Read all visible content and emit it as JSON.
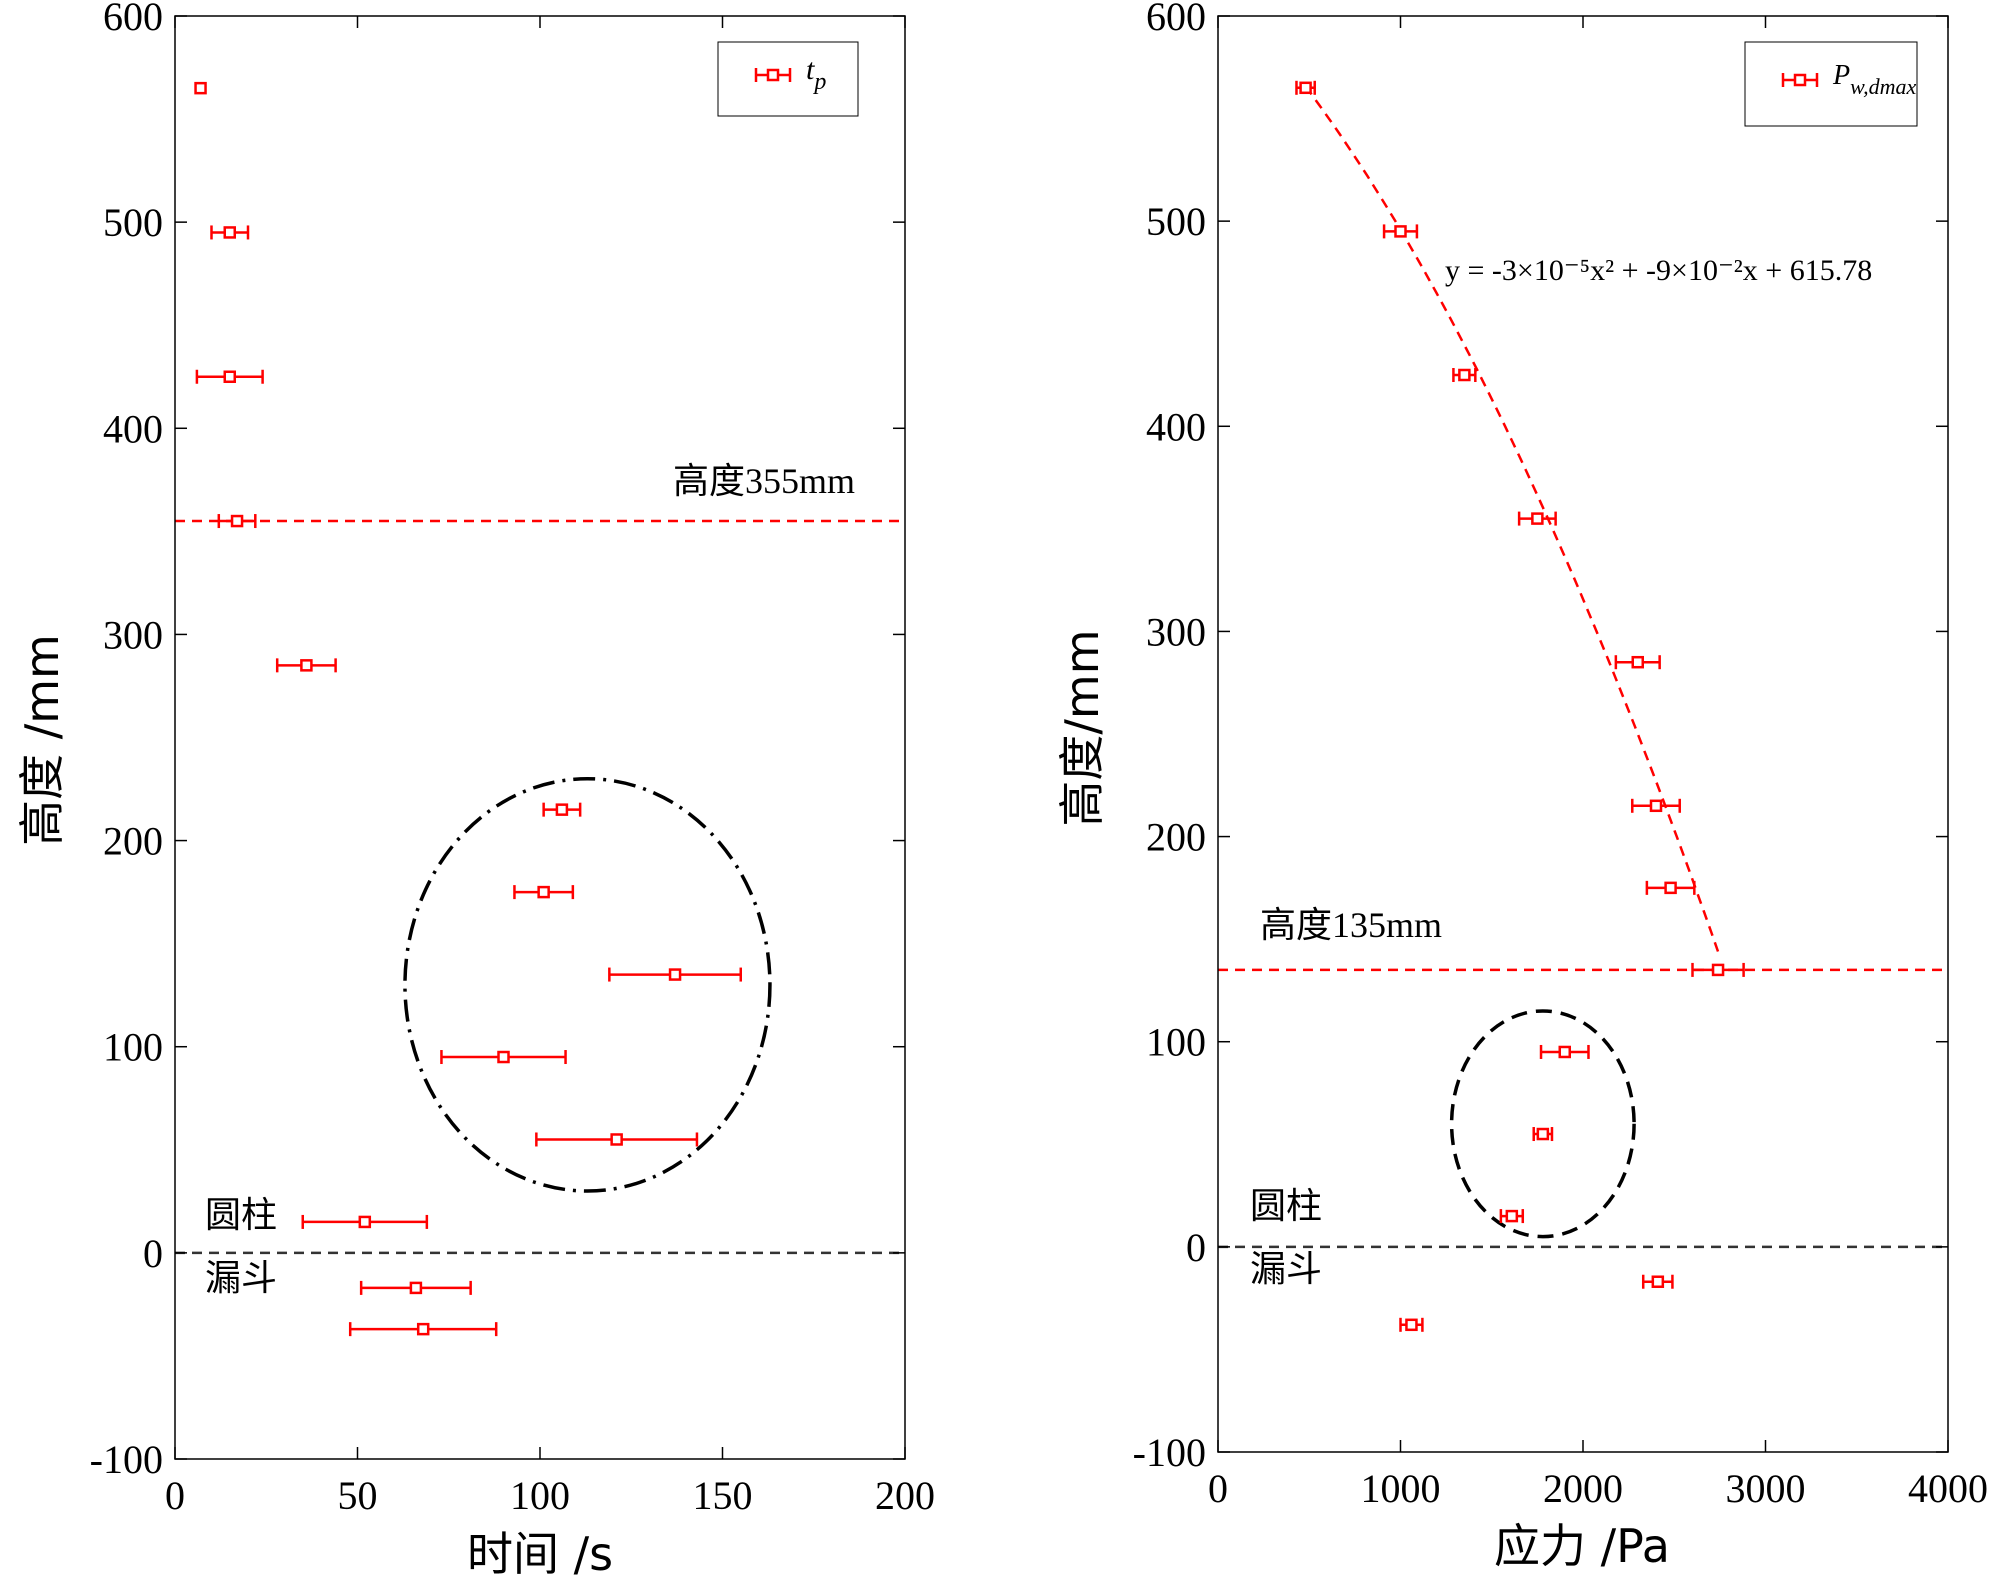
{
  "colors": {
    "series": "#ff0000",
    "axis": "#000000",
    "refline": "#333333",
    "ellipse": "#000000"
  },
  "chart_data": [
    {
      "type": "scatter",
      "title": "",
      "xlabel": "时间 /s",
      "ylabel": "高度 /mm",
      "xlim": [
        0,
        200
      ],
      "ylim": [
        -100,
        600
      ],
      "xticks": [
        0,
        50,
        100,
        150,
        200
      ],
      "yticks": [
        -100,
        0,
        100,
        200,
        300,
        400,
        500,
        600
      ],
      "xtick_labels": [
        "0",
        "50",
        "100",
        "150",
        "200"
      ],
      "ytick_labels": [
        "-100",
        "0",
        "100",
        "200",
        "300",
        "400",
        "500",
        "600"
      ],
      "legend": {
        "position": "top-right",
        "label_main": "t",
        "label_sub": "p"
      },
      "series": [
        {
          "name": "t_p",
          "points": [
            {
              "x": 7,
              "y": 565,
              "xerr": 0
            },
            {
              "x": 15,
              "y": 495,
              "xerr": 5
            },
            {
              "x": 15,
              "y": 425,
              "xerr": 9
            },
            {
              "x": 17,
              "y": 355,
              "xerr": 5
            },
            {
              "x": 36,
              "y": 285,
              "xerr": 8
            },
            {
              "x": 106,
              "y": 215,
              "xerr": 5
            },
            {
              "x": 101,
              "y": 175,
              "xerr": 8
            },
            {
              "x": 137,
              "y": 135,
              "xerr": 18
            },
            {
              "x": 90,
              "y": 95,
              "xerr": 17
            },
            {
              "x": 121,
              "y": 55,
              "xerr": 22
            },
            {
              "x": 52,
              "y": 15,
              "xerr": 17
            },
            {
              "x": 66,
              "y": -17,
              "xerr": 15
            },
            {
              "x": 68,
              "y": -37,
              "xerr": 20
            }
          ]
        }
      ],
      "ref_lines": [
        {
          "y": 355,
          "label": "高度355mm",
          "color": "#ff0000"
        },
        {
          "y": 0,
          "label": "",
          "color": "#333333"
        }
      ],
      "annotations": [
        "圆柱",
        "漏斗"
      ],
      "ellipse": {
        "cx": 113,
        "cy": 130,
        "rx": 50,
        "ry": 100,
        "style": "dash-dot"
      }
    },
    {
      "type": "scatter",
      "title": "",
      "xlabel": "应力 /Pa",
      "ylabel": "高度/mm",
      "xlim": [
        0,
        4000
      ],
      "ylim": [
        -100,
        600
      ],
      "xticks": [
        0,
        1000,
        2000,
        3000,
        4000
      ],
      "yticks": [
        -100,
        0,
        100,
        200,
        300,
        400,
        500,
        600
      ],
      "xtick_labels": [
        "0",
        "1000",
        "2000",
        "3000",
        "4000"
      ],
      "ytick_labels": [
        "-100",
        "0",
        "100",
        "200",
        "300",
        "400",
        "500",
        "600"
      ],
      "legend": {
        "position": "top-right",
        "label_main": "P",
        "label_sub": "w,dmax"
      },
      "series": [
        {
          "name": "P_w,dmax",
          "points": [
            {
              "x": 480,
              "y": 565,
              "xerr": 50
            },
            {
              "x": 1000,
              "y": 495,
              "xerr": 90
            },
            {
              "x": 1350,
              "y": 425,
              "xerr": 60
            },
            {
              "x": 1750,
              "y": 355,
              "xerr": 100
            },
            {
              "x": 2300,
              "y": 285,
              "xerr": 120
            },
            {
              "x": 2400,
              "y": 215,
              "xerr": 130
            },
            {
              "x": 2480,
              "y": 175,
              "xerr": 130
            },
            {
              "x": 2740,
              "y": 135,
              "xerr": 140
            },
            {
              "x": 1900,
              "y": 95,
              "xerr": 130
            },
            {
              "x": 1780,
              "y": 55,
              "xerr": 50
            },
            {
              "x": 1610,
              "y": 15,
              "xerr": 60
            },
            {
              "x": 2410,
              "y": -17,
              "xerr": 80
            },
            {
              "x": 1060,
              "y": -38,
              "xerr": 60
            }
          ]
        }
      ],
      "fit": {
        "label": "y = -3×10⁻⁵x² + -9×10⁻²x + 615.78",
        "a": -3e-05,
        "b": -0.09,
        "c": 615.78,
        "x_range": [
          480,
          2740
        ]
      },
      "ref_lines": [
        {
          "y": 135,
          "label": "高度135mm",
          "color": "#ff0000"
        },
        {
          "y": 0,
          "label": "",
          "color": "#333333"
        }
      ],
      "annotations": [
        "圆柱",
        "漏斗"
      ],
      "ellipse": {
        "cx": 1780,
        "cy": 60,
        "rx": 500,
        "ry": 55,
        "style": "dashed"
      }
    }
  ]
}
